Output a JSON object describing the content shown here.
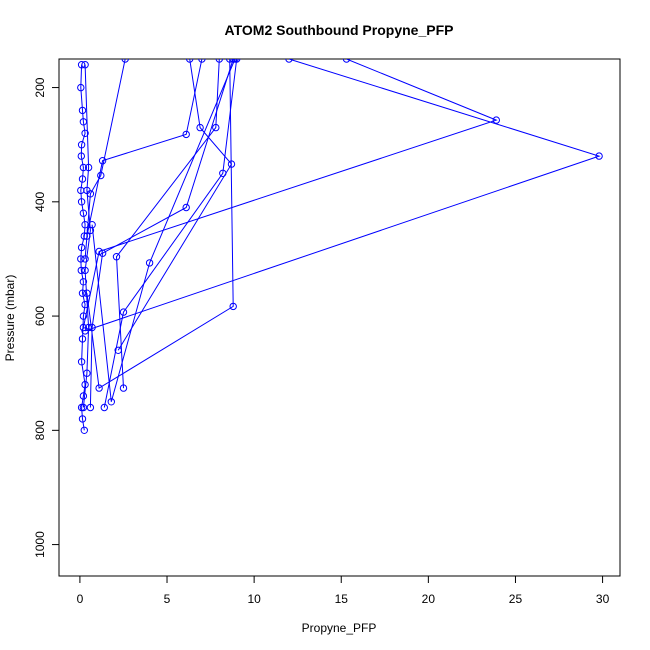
{
  "chart_data": {
    "type": "line",
    "title": "ATOM2 Southbound Propyne_PFP",
    "xlabel": "Propyne_PFP",
    "ylabel": "Pressure (mbar)",
    "xlim": [
      -1.2,
      31.0
    ],
    "ylim": [
      1055,
      150
    ],
    "x_ticks": [
      0,
      5,
      10,
      15,
      20,
      25,
      30
    ],
    "y_ticks": [
      200,
      400,
      600,
      800,
      1000
    ],
    "y_reversed": true,
    "grid": false,
    "legend": "none",
    "color": "#0000ff",
    "series": [
      {
        "x": [
          0.1,
          0.05,
          0.15,
          0.2,
          0.3,
          0.1,
          0.08,
          0.2,
          0.15,
          0.05,
          0.1,
          0.2,
          0.3,
          0.25,
          0.1,
          0.05,
          0.08,
          0.2,
          0.15,
          0.3,
          0.2,
          0.15,
          0.1,
          0.3,
          0.2,
          0.1,
          0.15,
          0.25
        ],
        "y": [
          160,
          200,
          240,
          260,
          280,
          300,
          320,
          340,
          360,
          380,
          400,
          420,
          440,
          460,
          480,
          500,
          520,
          540,
          560,
          580,
          600,
          640,
          680,
          720,
          740,
          760,
          780,
          800
        ]
      },
      {
        "x": [
          0.3,
          0.5,
          0.4,
          0.6,
          0.3,
          0.5,
          0.4,
          0.2
        ],
        "y": [
          160,
          340,
          380,
          450,
          520,
          620,
          700,
          760
        ]
      },
      {
        "x": [
          8.8,
          6.1,
          1.3,
          0.7,
          0.6
        ],
        "y": [
          150,
          410,
          490,
          620,
          760
        ]
      },
      {
        "x": [
          15.3,
          23.9,
          1.1,
          0.2
        ],
        "y": [
          150,
          257,
          487,
          620
        ]
      },
      {
        "x": [
          12.0,
          29.8,
          0.3
        ],
        "y": [
          150,
          320,
          626
        ]
      },
      {
        "x": [
          7.0,
          6.1,
          1.3,
          0.4
        ],
        "y": [
          150,
          282,
          328,
          460
        ]
      },
      {
        "x": [
          9.0,
          8.2,
          2.5,
          1.4
        ],
        "y": [
          150,
          350,
          593,
          760
        ]
      },
      {
        "x": [
          8.9,
          4.0,
          1.8,
          0.7
        ],
        "y": [
          150,
          507,
          750,
          440
        ]
      },
      {
        "x": [
          8.0,
          7.8,
          2.1,
          2.5
        ],
        "y": [
          150,
          270,
          496,
          726
        ]
      },
      {
        "x": [
          8.6,
          8.8,
          1.1,
          0.4
        ],
        "y": [
          150,
          583,
          726,
          560
        ]
      },
      {
        "x": [
          6.3,
          6.9,
          8.7,
          2.2
        ],
        "y": [
          150,
          270,
          334,
          660
        ]
      },
      {
        "x": [
          2.6,
          1.2,
          0.6,
          0.3
        ],
        "y": [
          150,
          354,
          386,
          500
        ]
      }
    ]
  }
}
